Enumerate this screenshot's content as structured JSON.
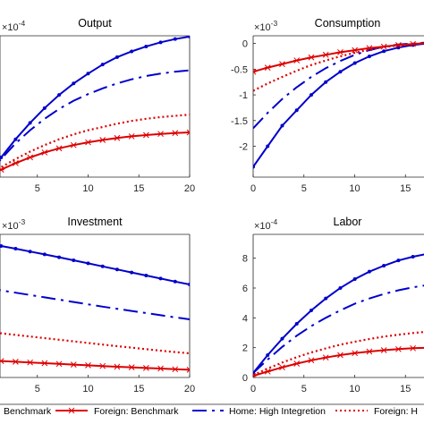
{
  "chart_data": [
    {
      "type": "line",
      "title": "Output",
      "exponent": "×10",
      "exponent_power": "-4",
      "xlim": [
        0,
        20
      ],
      "ylim": [
        0,
        8.6
      ],
      "xticks": [
        0,
        5,
        10,
        15,
        20
      ],
      "xtick_labels": [
        "",
        "5",
        "10",
        "15",
        "20"
      ],
      "yticks": [],
      "ytick_labels": [],
      "series": [
        {
          "name": "Home: Benchmark",
          "values": [
            0.0,
            1.2,
            2.3,
            3.3,
            4.2,
            5.0,
            5.7,
            6.3,
            6.85,
            7.3,
            7.65,
            7.95,
            8.2,
            8.4,
            8.55
          ]
        },
        {
          "name": "Home: High Integretion",
          "values": [
            0.0,
            1.1,
            2.05,
            2.85,
            3.55,
            4.15,
            4.65,
            5.05,
            5.4,
            5.7,
            5.95,
            6.15,
            6.3,
            6.42,
            6.5
          ]
        },
        {
          "name": "Foreign: Benchmark",
          "values": [
            0.0,
            0.45,
            0.85,
            1.2,
            1.5,
            1.75,
            1.95,
            2.12,
            2.26,
            2.38,
            2.48,
            2.56,
            2.63,
            2.68,
            2.72
          ]
        },
        {
          "name": "Foreign: High Integretion",
          "values": [
            0.0,
            0.6,
            1.1,
            1.55,
            1.95,
            2.3,
            2.6,
            2.85,
            3.05,
            3.25,
            3.42,
            3.55,
            3.65,
            3.73,
            3.8
          ]
        }
      ]
    },
    {
      "type": "line",
      "title": "Consumption",
      "exponent": "×10",
      "exponent_power": "-3",
      "xlim": [
        0,
        20
      ],
      "ylim": [
        -2.6,
        0.15
      ],
      "xticks": [
        0,
        5,
        10,
        15,
        20
      ],
      "xtick_labels": [
        "0",
        "5",
        "10",
        "15",
        ""
      ],
      "yticks": [
        0,
        -0.5,
        -1,
        -1.5,
        -2
      ],
      "ytick_labels": [
        "0",
        "-0.5",
        "-1",
        "-1.5",
        "-2"
      ],
      "series": [
        {
          "name": "Home: Benchmark",
          "values": [
            -2.4,
            -2.0,
            -1.6,
            -1.3,
            -1.0,
            -0.75,
            -0.55,
            -0.38,
            -0.25,
            -0.15,
            -0.08,
            -0.03,
            0.0,
            0.02
          ]
        },
        {
          "name": "Home: High Integretion",
          "values": [
            -1.65,
            -1.35,
            -1.08,
            -0.85,
            -0.65,
            -0.48,
            -0.34,
            -0.22,
            -0.13,
            -0.06,
            -0.02,
            0.0,
            0.02,
            0.03
          ]
        },
        {
          "name": "Foreign: Benchmark",
          "values": [
            -0.55,
            -0.47,
            -0.4,
            -0.33,
            -0.27,
            -0.22,
            -0.17,
            -0.13,
            -0.09,
            -0.06,
            -0.03,
            -0.01,
            0.01,
            0.02
          ]
        },
        {
          "name": "Foreign: High Integretion",
          "values": [
            -0.92,
            -0.78,
            -0.65,
            -0.53,
            -0.42,
            -0.33,
            -0.25,
            -0.18,
            -0.12,
            -0.07,
            -0.04,
            -0.01,
            0.01,
            0.02
          ]
        }
      ]
    },
    {
      "type": "line",
      "title": "Investment",
      "exponent": "×10",
      "exponent_power": "-3",
      "xlim": [
        0,
        20
      ],
      "ylim": [
        0,
        8.0
      ],
      "xticks": [
        0,
        5,
        10,
        15,
        20
      ],
      "xtick_labels": [
        "",
        "5",
        "10",
        "15",
        "20"
      ],
      "yticks": [],
      "ytick_labels": [],
      "series": [
        {
          "name": "Home: Benchmark",
          "values": [
            7.5,
            7.35,
            7.2,
            7.04,
            6.88,
            6.72,
            6.55,
            6.38,
            6.21,
            6.04,
            5.87,
            5.7,
            5.53,
            5.36,
            5.2
          ]
        },
        {
          "name": "Home: High Integretion",
          "values": [
            5.0,
            4.87,
            4.74,
            4.61,
            4.48,
            4.35,
            4.22,
            4.09,
            3.96,
            3.84,
            3.72,
            3.6,
            3.48,
            3.36,
            3.25
          ]
        },
        {
          "name": "Foreign: Benchmark",
          "values": [
            0.95,
            0.92,
            0.88,
            0.84,
            0.8,
            0.76,
            0.72,
            0.68,
            0.64,
            0.6,
            0.57,
            0.53,
            0.5,
            0.46,
            0.43
          ]
        },
        {
          "name": "Foreign: High Integretion",
          "values": [
            2.55,
            2.47,
            2.38,
            2.29,
            2.2,
            2.11,
            2.02,
            1.93,
            1.84,
            1.75,
            1.67,
            1.58,
            1.5,
            1.42,
            1.35
          ]
        }
      ]
    },
    {
      "type": "line",
      "title": "Labor",
      "exponent": "×10",
      "exponent_power": "-4",
      "xlim": [
        0,
        20
      ],
      "ylim": [
        0,
        9.6
      ],
      "xticks": [
        0,
        5,
        10,
        15,
        20
      ],
      "xtick_labels": [
        "0",
        "5",
        "10",
        "15",
        ""
      ],
      "yticks": [
        0,
        2,
        4,
        6,
        8
      ],
      "ytick_labels": [
        "0",
        "2",
        "4",
        "6",
        "8"
      ],
      "series": [
        {
          "name": "Home: Benchmark",
          "values": [
            0.3,
            1.5,
            2.6,
            3.6,
            4.5,
            5.3,
            6.0,
            6.6,
            7.1,
            7.5,
            7.85,
            8.1,
            8.3,
            8.45
          ]
        },
        {
          "name": "Home: High Integretion",
          "values": [
            0.3,
            1.2,
            2.05,
            2.8,
            3.45,
            4.0,
            4.5,
            4.95,
            5.3,
            5.6,
            5.85,
            6.05,
            6.2,
            6.3
          ]
        },
        {
          "name": "Foreign: Benchmark",
          "values": [
            0.1,
            0.4,
            0.68,
            0.93,
            1.15,
            1.34,
            1.5,
            1.63,
            1.74,
            1.83,
            1.9,
            1.96,
            2.0,
            2.03
          ]
        },
        {
          "name": "Foreign: High Integretion",
          "values": [
            0.15,
            0.6,
            1.0,
            1.36,
            1.68,
            1.95,
            2.2,
            2.4,
            2.58,
            2.74,
            2.87,
            2.98,
            3.07,
            3.15
          ]
        }
      ]
    }
  ],
  "legend": {
    "entries": [
      {
        "label": "Benchmark"
      },
      {
        "label": "Foreign: Benchmark"
      },
      {
        "label": "Home: High Integretion"
      },
      {
        "label": "Foreign: H"
      }
    ]
  },
  "colors": {
    "home": "#0000cc",
    "foreign": "#dd0000",
    "axis": "#262626",
    "grid": "#000000"
  },
  "series_styles": [
    {
      "name": "Home: Benchmark",
      "color": "#0000cc",
      "dash": "",
      "marker": "dot"
    },
    {
      "name": "Home: High Integretion",
      "color": "#0000cc",
      "dash": "16 6 3 6",
      "marker": "none"
    },
    {
      "name": "Foreign: Benchmark",
      "color": "#dd0000",
      "dash": "",
      "marker": "star"
    },
    {
      "name": "Foreign: High Integretion",
      "color": "#dd0000",
      "dash": "2 3",
      "marker": "none"
    }
  ]
}
